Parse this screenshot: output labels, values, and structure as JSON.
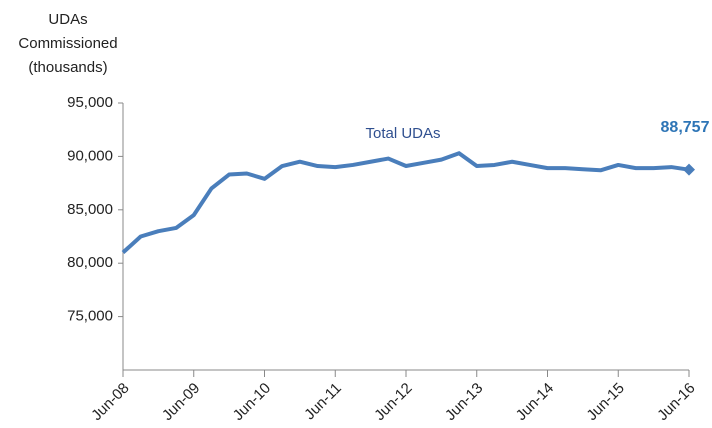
{
  "chart_data": {
    "type": "line",
    "y_label": [
      "UDAs",
      "Commissioned",
      "(thousands)"
    ],
    "annotation": "Total UDAs",
    "categories": [
      "Jun-08",
      null,
      null,
      null,
      "Jun-09",
      null,
      null,
      null,
      "Jun-10",
      null,
      null,
      null,
      "Jun-11",
      null,
      null,
      null,
      "Jun-12",
      null,
      null,
      null,
      "Jun-13",
      null,
      null,
      null,
      "Jun-14",
      null,
      null,
      null,
      "Jun-15",
      null,
      null,
      null,
      "Jun-16"
    ],
    "series": [
      {
        "name": "Total UDAs",
        "color": "#4a7ebb",
        "values": [
          81000,
          82500,
          83000,
          83300,
          84500,
          87000,
          88300,
          88400,
          87900,
          89100,
          89500,
          89100,
          89000,
          89200,
          89500,
          89800,
          89100,
          89400,
          89700,
          90300,
          89100,
          89200,
          89500,
          89200,
          88900,
          88900,
          88800,
          88700,
          89200,
          88900,
          88900,
          89000,
          88757
        ],
        "value_labels": [
          null,
          null,
          null,
          null,
          null,
          null,
          null,
          null,
          null,
          null,
          null,
          null,
          null,
          null,
          null,
          null,
          null,
          null,
          null,
          null,
          null,
          null,
          null,
          null,
          null,
          null,
          null,
          null,
          null,
          null,
          null,
          null,
          "88,757"
        ]
      }
    ],
    "value_label_color": "#2e75b6",
    "ylim": [
      70000,
      95000
    ],
    "yticks": [
      {
        "value": 75000,
        "label": "75,000"
      },
      {
        "value": 80000,
        "label": "80,000"
      },
      {
        "value": 85000,
        "label": "85,000"
      },
      {
        "value": 90000,
        "label": "90,000"
      },
      {
        "value": 95000,
        "label": "95,000"
      }
    ],
    "grid": false
  }
}
